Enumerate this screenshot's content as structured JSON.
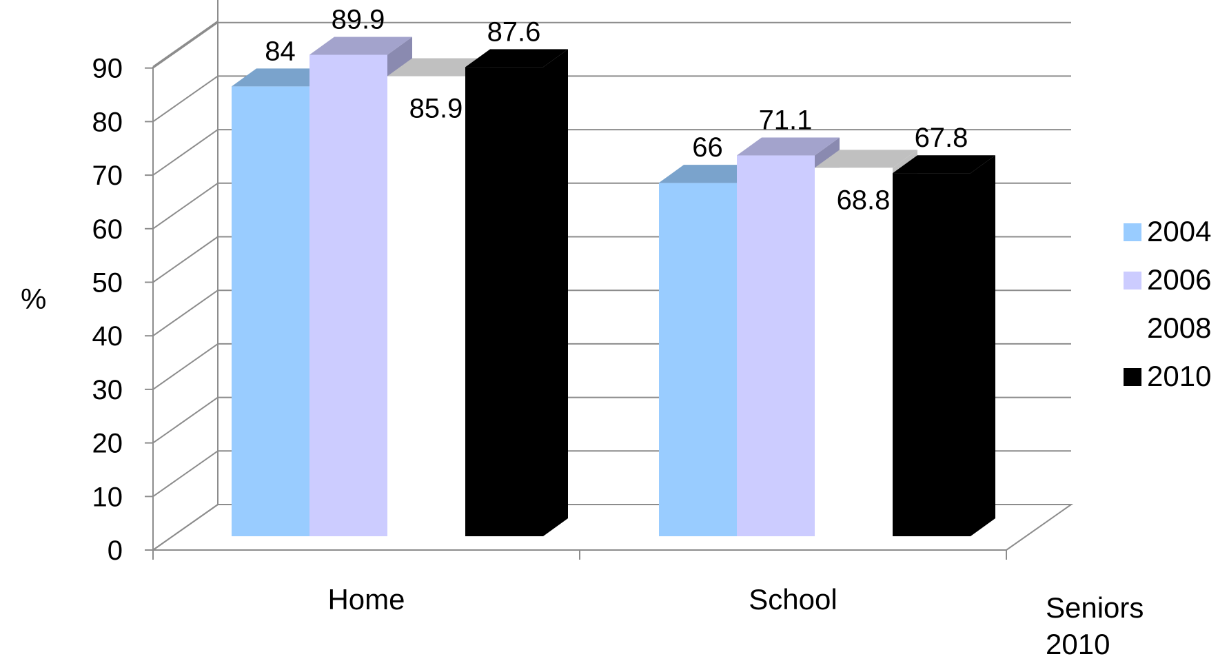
{
  "chart_data": {
    "type": "bar",
    "title": "",
    "xlabel": "",
    "ylabel": "%",
    "categories": [
      "Home",
      "School"
    ],
    "series": [
      {
        "name": "2004",
        "values": [
          84,
          66
        ],
        "color": "#99ccff",
        "top_color": "#7aa3cc",
        "side_color": "#7aa3cc"
      },
      {
        "name": "2006",
        "values": [
          89.9,
          71.1
        ],
        "color": "#ccccff",
        "top_color": "#a3a3cc",
        "side_color": "#8a8ab0"
      },
      {
        "name": "2008",
        "values": [
          85.9,
          68.8
        ],
        "color": "#ffffff",
        "top_color": "#c0c0c0",
        "side_color": "#c0c0c0"
      },
      {
        "name": "2010",
        "values": [
          87.6,
          67.8
        ],
        "color": "#000000",
        "top_color": "#000000",
        "side_color": "#000000"
      }
    ],
    "data_labels": [
      [
        "84",
        "66"
      ],
      [
        "89.9",
        "71.1"
      ],
      [
        "85.9",
        "68.8"
      ],
      [
        "87.6",
        "67.8"
      ]
    ],
    "yticks": [
      "0",
      "10",
      "20",
      "30",
      "40",
      "50",
      "60",
      "70",
      "80",
      "90"
    ],
    "ylim": [
      0,
      90
    ],
    "grid": true,
    "legend_position": "right",
    "note": [
      "Seniors",
      "2010"
    ]
  }
}
